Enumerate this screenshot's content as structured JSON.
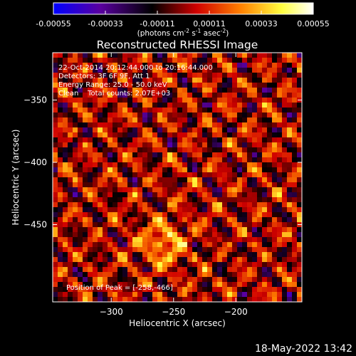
{
  "colorbar": {
    "ticks": [
      "-0.00055",
      "-0.00033",
      "-0.00011",
      "0.00011",
      "0.00033",
      "0.00055"
    ],
    "units_main": "(photons cm",
    "units_exp1": "-2",
    "units_s": " s",
    "units_exp2": "-1",
    "units_asec": " asec",
    "units_exp3": "-2",
    "units_close": ")",
    "colors": [
      "#0000ff",
      "#5a00a0",
      "#000000",
      "#d00000",
      "#ff8000",
      "#ffff40",
      "#ffffff"
    ]
  },
  "annotations": {
    "line1": "22-Oct-2014 20:12:44.000 to 20:16:44.000",
    "line2": "Detectors: 3F 6F 9F, Att 1",
    "line3": "Energy Range: 25.0 - 50.0 keV",
    "line4": "Clean    Total counts: 2.07E+03",
    "peak": "Position of Peak = [-258,-466]"
  },
  "footer": {
    "timestamp": "18-May-2022 13:42"
  },
  "chart_data": {
    "type": "heatmap",
    "title": "Reconstructed RHESSI Image",
    "xlabel": "Heliocentric X (arcsec)",
    "ylabel": "Heliocentric Y (arcsec)",
    "xlim": [
      -347,
      -147
    ],
    "ylim": [
      -512,
      -312
    ],
    "xticks": [
      -300,
      -250,
      -200
    ],
    "yticks": [
      -350,
      -400,
      -450
    ],
    "xtick_labels": [
      "−300",
      "−250",
      "−200"
    ],
    "ytick_labels": [
      "−350",
      "−400",
      "−450"
    ],
    "value_range": [
      -0.00055,
      0.00055
    ],
    "peak_position": [
      -258,
      -466
    ],
    "peak_value": 0.00055
  }
}
